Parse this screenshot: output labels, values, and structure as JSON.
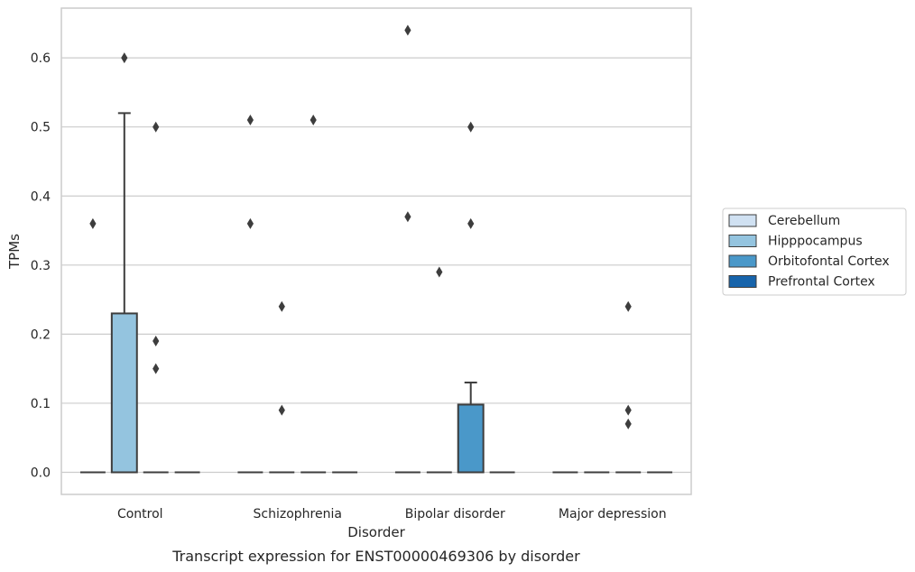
{
  "chart_data": {
    "type": "box",
    "xlabel": "Disorder",
    "ylabel": "TPMs",
    "caption": "Transcript expression for ENST00000469306 by disorder",
    "ylim": [
      -0.032,
      0.672
    ],
    "yticks": [
      "0.0",
      "0.1",
      "0.2",
      "0.3",
      "0.4",
      "0.5",
      "0.6"
    ],
    "grid": "horizontal",
    "legend_position": "right",
    "categories": [
      "Control",
      "Schizophrenia",
      "Bipolar disorder",
      "Major depression"
    ],
    "series": [
      {
        "name": "Cerebellum",
        "color": "#d0e1f2"
      },
      {
        "name": "Hipppocampus",
        "color": "#94c4df"
      },
      {
        "name": "Orbitofontal Cortex",
        "color": "#4a98c9"
      },
      {
        "name": "Prefrontal Cortex",
        "color": "#1764ab"
      }
    ],
    "boxes": [
      {
        "category": "Control",
        "series": "Cerebellum",
        "q1": 0,
        "median": 0,
        "q3": 0,
        "whisker_low": 0,
        "whisker_high": 0,
        "outliers": [
          0.36
        ]
      },
      {
        "category": "Control",
        "series": "Hipppocampus",
        "q1": 0,
        "median": 0,
        "q3": 0.23,
        "whisker_low": 0,
        "whisker_high": 0.52,
        "outliers": [
          0.6
        ]
      },
      {
        "category": "Control",
        "series": "Orbitofontal Cortex",
        "q1": 0,
        "median": 0,
        "q3": 0,
        "whisker_low": 0,
        "whisker_high": 0,
        "outliers": [
          0.5,
          0.19,
          0.15
        ]
      },
      {
        "category": "Control",
        "series": "Prefrontal Cortex",
        "q1": 0,
        "median": 0,
        "q3": 0,
        "whisker_low": 0,
        "whisker_high": 0,
        "outliers": []
      },
      {
        "category": "Schizophrenia",
        "series": "Cerebellum",
        "q1": 0,
        "median": 0,
        "q3": 0,
        "whisker_low": 0,
        "whisker_high": 0,
        "outliers": [
          0.51,
          0.36
        ]
      },
      {
        "category": "Schizophrenia",
        "series": "Hipppocampus",
        "q1": 0,
        "median": 0,
        "q3": 0,
        "whisker_low": 0,
        "whisker_high": 0,
        "outliers": [
          0.24,
          0.09
        ]
      },
      {
        "category": "Schizophrenia",
        "series": "Orbitofontal Cortex",
        "q1": 0,
        "median": 0,
        "q3": 0,
        "whisker_low": 0,
        "whisker_high": 0,
        "outliers": [
          0.51
        ]
      },
      {
        "category": "Schizophrenia",
        "series": "Prefrontal Cortex",
        "q1": 0,
        "median": 0,
        "q3": 0,
        "whisker_low": 0,
        "whisker_high": 0,
        "outliers": []
      },
      {
        "category": "Bipolar disorder",
        "series": "Cerebellum",
        "q1": 0,
        "median": 0,
        "q3": 0,
        "whisker_low": 0,
        "whisker_high": 0,
        "outliers": [
          0.64,
          0.37
        ]
      },
      {
        "category": "Bipolar disorder",
        "series": "Hipppocampus",
        "q1": 0,
        "median": 0,
        "q3": 0,
        "whisker_low": 0,
        "whisker_high": 0,
        "outliers": [
          0.29
        ]
      },
      {
        "category": "Bipolar disorder",
        "series": "Orbitofontal Cortex",
        "q1": 0,
        "median": 0,
        "q3": 0.098,
        "whisker_low": 0,
        "whisker_high": 0.13,
        "outliers": [
          0.5,
          0.36
        ]
      },
      {
        "category": "Bipolar disorder",
        "series": "Prefrontal Cortex",
        "q1": 0,
        "median": 0,
        "q3": 0,
        "whisker_low": 0,
        "whisker_high": 0,
        "outliers": []
      },
      {
        "category": "Major depression",
        "series": "Cerebellum",
        "q1": 0,
        "median": 0,
        "q3": 0,
        "whisker_low": 0,
        "whisker_high": 0,
        "outliers": []
      },
      {
        "category": "Major depression",
        "series": "Hipppocampus",
        "q1": 0,
        "median": 0,
        "q3": 0,
        "whisker_low": 0,
        "whisker_high": 0,
        "outliers": []
      },
      {
        "category": "Major depression",
        "series": "Orbitofontal Cortex",
        "q1": 0,
        "median": 0,
        "q3": 0,
        "whisker_low": 0,
        "whisker_high": 0,
        "outliers": [
          0.24,
          0.09,
          0.07
        ]
      },
      {
        "category": "Major depression",
        "series": "Prefrontal Cortex",
        "q1": 0,
        "median": 0,
        "q3": 0,
        "whisker_low": 0,
        "whisker_high": 0,
        "outliers": []
      }
    ]
  }
}
